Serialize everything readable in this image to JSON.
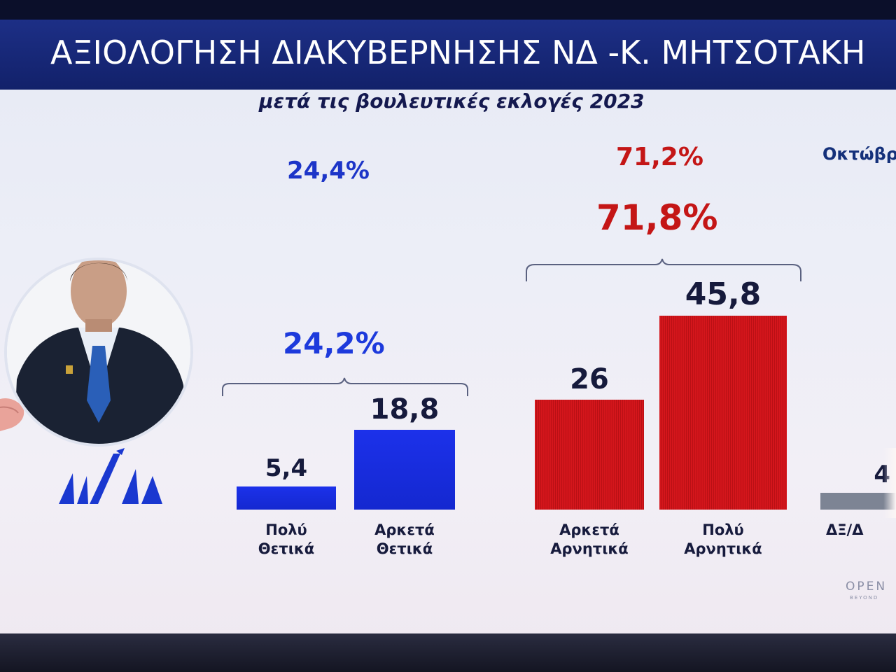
{
  "header": {
    "title": "ΑΞΙΟΛΟΓΗΣΗ ΔΙΑΚΥΒΕΡΝΗΣΗΣ ΝΔ -Κ. ΜΗΤΣΟΤΑΚΗ",
    "subtitle": "μετά τις βουλευτικές εκλογές 2023"
  },
  "period_label": "Οκτώβρι",
  "brand": {
    "name": "OPEN",
    "tagline": "BEYOND"
  },
  "colors": {
    "positive": "#1c31ea",
    "negative": "#d4161c",
    "neutral": "#7d8494",
    "banner": "#1d2f86"
  },
  "chart_data": {
    "type": "bar",
    "title": "ΑΞΙΟΛΟΓΗΣΗ ΔΙΑΚΥΒΕΡΝΗΣΗΣ ΝΔ -Κ. ΜΗΤΣΟΤΑΚΗ",
    "subtitle": "μετά τις βουλευτικές εκλογές 2023",
    "categories": [
      "Πολύ Θετικά",
      "Αρκετά Θετικά",
      "Αρκετά Αρνητικά",
      "Πολύ Αρνητικά",
      "ΔΞ/Δ"
    ],
    "category_lines": [
      [
        "Πολύ",
        "Θετικά"
      ],
      [
        "Αρκετά",
        "Θετικά"
      ],
      [
        "Αρκετά",
        "Αρνητικά"
      ],
      [
        "Πολύ",
        "Αρνητικά"
      ],
      [
        "ΔΞ/Δ"
      ]
    ],
    "values": [
      5.4,
      18.8,
      26,
      45.8,
      4
    ],
    "value_labels": [
      "5,4",
      "18,8",
      "26",
      "45,8",
      "4"
    ],
    "bar_colors": [
      "#1c31ea",
      "#1c31ea",
      "#d4161c",
      "#d4161c",
      "#7d8494"
    ],
    "groups": {
      "positive": {
        "total_label": "24,2%",
        "previous_label": "24,4%"
      },
      "negative": {
        "total_label": "71,8%",
        "previous_label": "71,2%"
      }
    },
    "xlabel": "",
    "ylabel": "",
    "grid": false,
    "legend": "none"
  }
}
